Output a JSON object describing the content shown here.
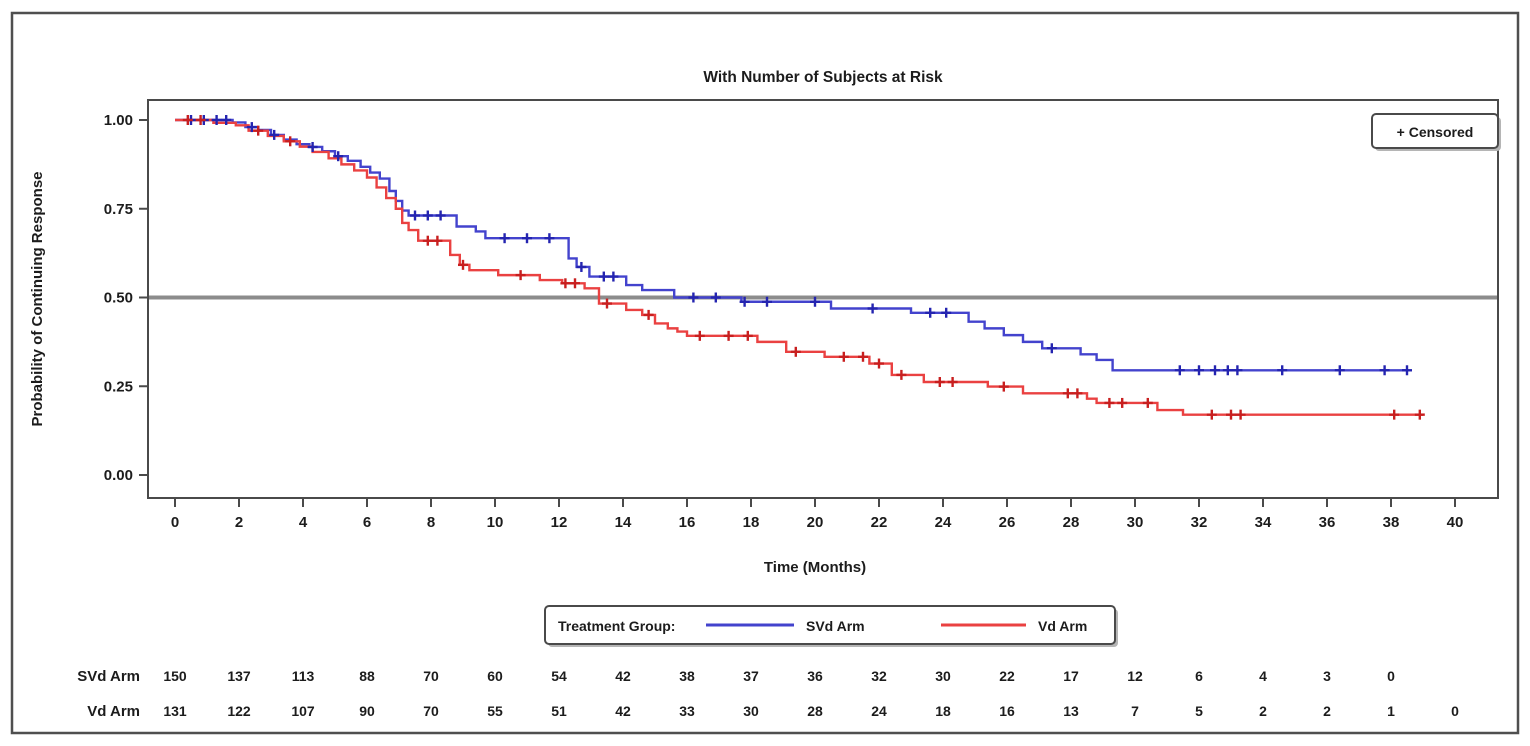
{
  "figure": {
    "title": "With Number of Subjects at Risk",
    "censored_label": "+ Censored",
    "legend_title": "Treatment Group:"
  },
  "chart_data": {
    "type": "line",
    "subtype": "kaplan_meier_step",
    "title": "With Number of Subjects at Risk",
    "xlabel": "Time (Months)",
    "ylabel": "Probability of Continuing Response",
    "xlim": [
      0,
      40
    ],
    "ylim": [
      0.0,
      1.0
    ],
    "grid": false,
    "legend_position": "bottom",
    "x_ticks": [
      0,
      2,
      4,
      6,
      8,
      10,
      12,
      14,
      16,
      18,
      20,
      22,
      24,
      26,
      28,
      30,
      32,
      34,
      36,
      38,
      40
    ],
    "y_ticks": [
      {
        "value": 1.0,
        "label": "1.00"
      },
      {
        "value": 0.75,
        "label": "0.75"
      },
      {
        "value": 0.5,
        "label": "0.50"
      },
      {
        "value": 0.25,
        "label": "0.25"
      },
      {
        "value": 0.0,
        "label": "0.00"
      }
    ],
    "reference_line": {
      "y": 0.5,
      "color": "#8c8c8c"
    },
    "censored_marker": "+",
    "series": [
      {
        "name": "SVd Arm",
        "color": "#4343cd",
        "censor_color": "#2424b0",
        "steps": [
          [
            0,
            1.0
          ],
          [
            1.8,
            0.993
          ],
          [
            2.2,
            0.98
          ],
          [
            2.6,
            0.972
          ],
          [
            3.0,
            0.958
          ],
          [
            3.4,
            0.945
          ],
          [
            3.8,
            0.932
          ],
          [
            4.2,
            0.924
          ],
          [
            4.6,
            0.912
          ],
          [
            5.0,
            0.898
          ],
          [
            5.4,
            0.885
          ],
          [
            5.8,
            0.868
          ],
          [
            6.1,
            0.852
          ],
          [
            6.4,
            0.835
          ],
          [
            6.7,
            0.8
          ],
          [
            6.9,
            0.772
          ],
          [
            7.1,
            0.745
          ],
          [
            7.3,
            0.731
          ],
          [
            8.8,
            0.7
          ],
          [
            9.4,
            0.686
          ],
          [
            9.7,
            0.667
          ],
          [
            12.3,
            0.61
          ],
          [
            12.55,
            0.586
          ],
          [
            12.95,
            0.559
          ],
          [
            14.1,
            0.535
          ],
          [
            14.6,
            0.521
          ],
          [
            15.6,
            0.5
          ],
          [
            17.7,
            0.488
          ],
          [
            20.5,
            0.469
          ],
          [
            23.0,
            0.457
          ],
          [
            24.8,
            0.432
          ],
          [
            25.3,
            0.413
          ],
          [
            25.9,
            0.394
          ],
          [
            26.5,
            0.375
          ],
          [
            27.1,
            0.357
          ],
          [
            28.3,
            0.34
          ],
          [
            28.8,
            0.324
          ],
          [
            29.3,
            0.295
          ],
          [
            38.5,
            0.295
          ]
        ],
        "censors": [
          [
            0.5,
            1.0
          ],
          [
            0.9,
            1.0
          ],
          [
            1.3,
            1.0
          ],
          [
            1.6,
            1.0
          ],
          [
            2.4,
            0.98
          ],
          [
            3.1,
            0.958
          ],
          [
            4.3,
            0.924
          ],
          [
            5.1,
            0.898
          ],
          [
            7.5,
            0.731
          ],
          [
            7.9,
            0.731
          ],
          [
            8.3,
            0.731
          ],
          [
            10.3,
            0.667
          ],
          [
            11.0,
            0.667
          ],
          [
            11.7,
            0.667
          ],
          [
            12.7,
            0.586
          ],
          [
            13.4,
            0.559
          ],
          [
            13.7,
            0.559
          ],
          [
            16.2,
            0.5
          ],
          [
            16.9,
            0.5
          ],
          [
            17.8,
            0.488
          ],
          [
            18.5,
            0.488
          ],
          [
            20.0,
            0.488
          ],
          [
            21.8,
            0.469
          ],
          [
            23.6,
            0.457
          ],
          [
            24.1,
            0.457
          ],
          [
            27.4,
            0.357
          ],
          [
            31.4,
            0.295
          ],
          [
            32.0,
            0.295
          ],
          [
            32.5,
            0.295
          ],
          [
            32.9,
            0.295
          ],
          [
            33.2,
            0.295
          ],
          [
            34.6,
            0.295
          ],
          [
            36.4,
            0.295
          ],
          [
            37.8,
            0.295
          ],
          [
            38.5,
            0.295
          ]
        ]
      },
      {
        "name": "Vd Arm",
        "color": "#ea4141",
        "censor_color": "#c81f1f",
        "steps": [
          [
            0,
            1.0
          ],
          [
            1.2,
            0.992
          ],
          [
            1.9,
            0.985
          ],
          [
            2.3,
            0.97
          ],
          [
            2.9,
            0.955
          ],
          [
            3.4,
            0.94
          ],
          [
            3.9,
            0.925
          ],
          [
            4.3,
            0.91
          ],
          [
            4.8,
            0.892
          ],
          [
            5.2,
            0.875
          ],
          [
            5.6,
            0.858
          ],
          [
            6.0,
            0.838
          ],
          [
            6.3,
            0.81
          ],
          [
            6.6,
            0.78
          ],
          [
            6.9,
            0.75
          ],
          [
            7.1,
            0.71
          ],
          [
            7.3,
            0.69
          ],
          [
            7.6,
            0.66
          ],
          [
            8.6,
            0.62
          ],
          [
            8.9,
            0.592
          ],
          [
            9.2,
            0.577
          ],
          [
            10.1,
            0.563
          ],
          [
            11.4,
            0.549
          ],
          [
            12.1,
            0.54
          ],
          [
            12.8,
            0.526
          ],
          [
            13.25,
            0.483
          ],
          [
            14.1,
            0.465
          ],
          [
            14.6,
            0.451
          ],
          [
            15.0,
            0.427
          ],
          [
            15.4,
            0.413
          ],
          [
            15.7,
            0.404
          ],
          [
            16.0,
            0.392
          ],
          [
            18.2,
            0.375
          ],
          [
            19.1,
            0.347
          ],
          [
            20.3,
            0.333
          ],
          [
            21.7,
            0.314
          ],
          [
            22.4,
            0.282
          ],
          [
            23.4,
            0.262
          ],
          [
            25.4,
            0.249
          ],
          [
            26.5,
            0.23
          ],
          [
            28.5,
            0.215
          ],
          [
            28.8,
            0.203
          ],
          [
            30.7,
            0.183
          ],
          [
            31.5,
            0.17
          ],
          [
            39.0,
            0.17
          ]
        ],
        "censors": [
          [
            0.4,
            1.0
          ],
          [
            0.8,
            1.0
          ],
          [
            2.6,
            0.97
          ],
          [
            3.6,
            0.94
          ],
          [
            7.9,
            0.66
          ],
          [
            8.2,
            0.66
          ],
          [
            9.0,
            0.592
          ],
          [
            10.8,
            0.563
          ],
          [
            12.2,
            0.54
          ],
          [
            12.5,
            0.54
          ],
          [
            13.5,
            0.483
          ],
          [
            14.8,
            0.451
          ],
          [
            16.4,
            0.392
          ],
          [
            17.3,
            0.392
          ],
          [
            17.9,
            0.392
          ],
          [
            19.4,
            0.347
          ],
          [
            20.9,
            0.333
          ],
          [
            21.5,
            0.333
          ],
          [
            22.0,
            0.314
          ],
          [
            22.7,
            0.282
          ],
          [
            23.9,
            0.262
          ],
          [
            24.3,
            0.262
          ],
          [
            25.9,
            0.249
          ],
          [
            27.9,
            0.23
          ],
          [
            28.2,
            0.23
          ],
          [
            29.2,
            0.203
          ],
          [
            29.6,
            0.203
          ],
          [
            30.4,
            0.203
          ],
          [
            32.4,
            0.17
          ],
          [
            33.0,
            0.17
          ],
          [
            33.3,
            0.17
          ],
          [
            38.1,
            0.17
          ],
          [
            38.9,
            0.17
          ]
        ]
      }
    ],
    "at_risk_table": {
      "rows": [
        {
          "label": "SVd Arm",
          "times": [
            0,
            2,
            4,
            6,
            8,
            10,
            12,
            14,
            16,
            18,
            20,
            22,
            24,
            26,
            28,
            30,
            32,
            34,
            36,
            38
          ],
          "counts": [
            150,
            137,
            113,
            88,
            70,
            60,
            54,
            42,
            38,
            37,
            36,
            32,
            30,
            22,
            17,
            12,
            6,
            4,
            3,
            0
          ]
        },
        {
          "label": "Vd Arm",
          "times": [
            0,
            2,
            4,
            6,
            8,
            10,
            12,
            14,
            16,
            18,
            20,
            22,
            24,
            26,
            28,
            30,
            32,
            34,
            36,
            38,
            40
          ],
          "counts": [
            131,
            122,
            107,
            90,
            70,
            55,
            51,
            42,
            33,
            30,
            28,
            24,
            18,
            16,
            13,
            7,
            5,
            2,
            2,
            1,
            0
          ]
        }
      ]
    }
  }
}
